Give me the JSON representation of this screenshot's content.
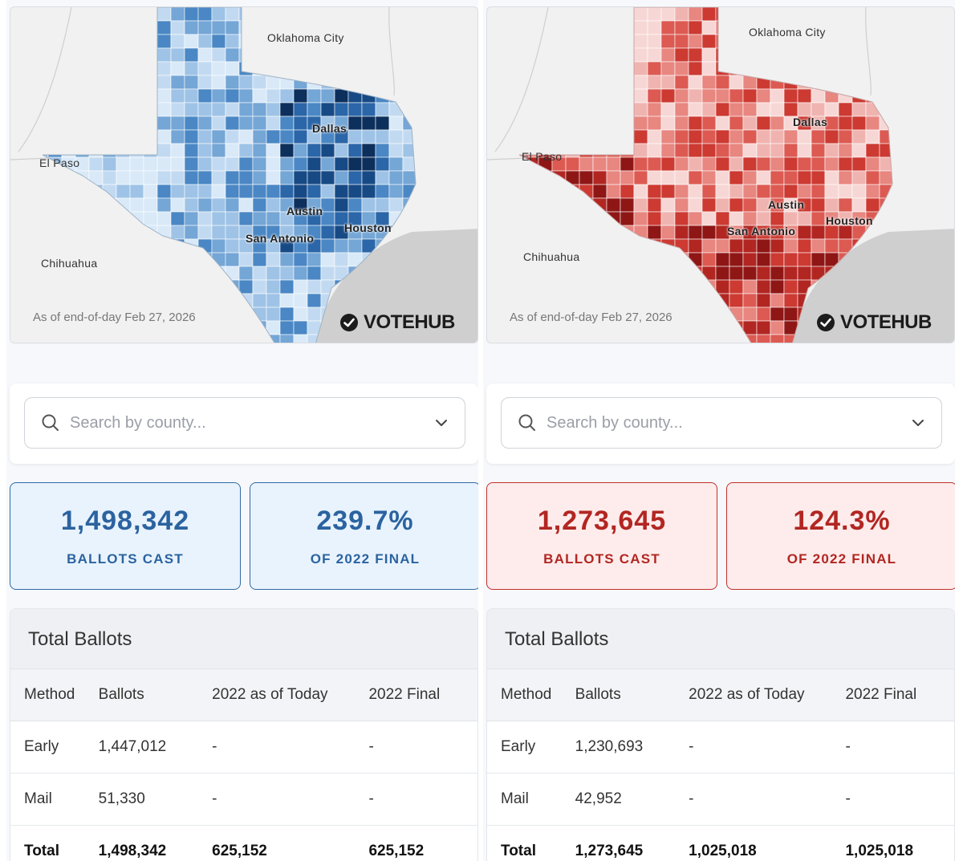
{
  "panels": [
    {
      "theme": "blue",
      "accent_color": "#2b63a0",
      "map": {
        "cities": {
          "oklahoma_city": "Oklahoma City",
          "dallas": "Dallas",
          "el_paso": "El Paso",
          "austin": "Austin",
          "houston": "Houston",
          "san_antonio": "San Antonio",
          "chihuahua": "Chihuahua"
        },
        "as_of": "As of end-of-day Feb 27, 2026",
        "brand": "VOTEHUB"
      },
      "search": {
        "placeholder": "Search by county..."
      },
      "stats": [
        {
          "value": "1,498,342",
          "label": "BALLOTS CAST"
        },
        {
          "value": "239.7%",
          "label": "OF 2022 FINAL"
        }
      ],
      "table": {
        "title": "Total Ballots",
        "columns": [
          "Method",
          "Ballots",
          "2022 as of Today",
          "2022 Final"
        ],
        "rows": [
          [
            "Early",
            "1,447,012",
            "-",
            "-"
          ],
          [
            "Mail",
            "51,330",
            "-",
            "-"
          ],
          [
            "Total",
            "1,498,342",
            "625,152",
            "625,152"
          ]
        ]
      }
    },
    {
      "theme": "red",
      "accent_color": "#b22622",
      "map": {
        "cities": {
          "oklahoma_city": "Oklahoma City",
          "dallas": "Dallas",
          "el_paso": "El Paso",
          "austin": "Austin",
          "houston": "Houston",
          "san_antonio": "San Antonio",
          "chihuahua": "Chihuahua"
        },
        "as_of": "As of end-of-day Feb 27, 2026",
        "brand": "VOTEHUB"
      },
      "search": {
        "placeholder": "Search by county..."
      },
      "stats": [
        {
          "value": "1,273,645",
          "label": "BALLOTS CAST"
        },
        {
          "value": "124.3%",
          "label": "OF 2022 FINAL"
        }
      ],
      "table": {
        "title": "Total Ballots",
        "columns": [
          "Method",
          "Ballots",
          "2022 as of Today",
          "2022 Final"
        ],
        "rows": [
          [
            "Early",
            "1,230,693",
            "-",
            "-"
          ],
          [
            "Mail",
            "42,952",
            "-",
            "-"
          ],
          [
            "Total",
            "1,273,645",
            "1,025,018",
            "1,025,018"
          ]
        ]
      }
    }
  ]
}
